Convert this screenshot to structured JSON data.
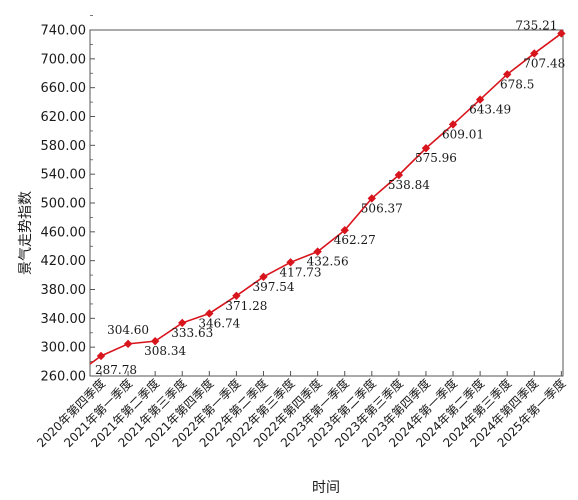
{
  "chart_data": {
    "type": "line",
    "title": "",
    "xlabel": "时间",
    "ylabel": "景气走势指数",
    "ylim": [
      260,
      740
    ],
    "yticks": [
      "260.00",
      "300.00",
      "340.00",
      "380.00",
      "420.00",
      "460.00",
      "500.00",
      "540.00",
      "580.00",
      "620.00",
      "660.00",
      "700.00",
      "740.00"
    ],
    "categories": [
      "2020年第四季度",
      "2021年第一季度",
      "2021年第二季度",
      "2021年第三季度",
      "2021年第四季度",
      "2022年第一季度",
      "2022年第二季度",
      "2022年第三季度",
      "2022年第四季度",
      "2023年第一季度",
      "2023年第二季度",
      "2023年第三季度",
      "2023年第四季度",
      "2024年第一季度",
      "2024年第二季度",
      "2024年第三季度",
      "2024年第四季度",
      "2025年第一季度"
    ],
    "series": [
      {
        "values": [
          287.78,
          304.6,
          308.34,
          333.63,
          346.74,
          371.28,
          397.54,
          417.73,
          432.56,
          462.27,
          506.37,
          538.84,
          575.96,
          609.01,
          643.49,
          678.5,
          707.48,
          735.21
        ],
        "labels": [
          "287.78",
          "304.60",
          "308.34",
          "333.63",
          "346.74",
          "371.28",
          "397.54",
          "417.73",
          "432.56",
          "462.27",
          "506.37",
          "538.84",
          "575.96",
          "609.01",
          "643.49",
          "678.5",
          "707.48",
          "735.21"
        ]
      }
    ],
    "grid": false,
    "legend": "none",
    "line_color": "#d8141c",
    "marker_color": "#d8141c",
    "axis_color": "#555555"
  }
}
